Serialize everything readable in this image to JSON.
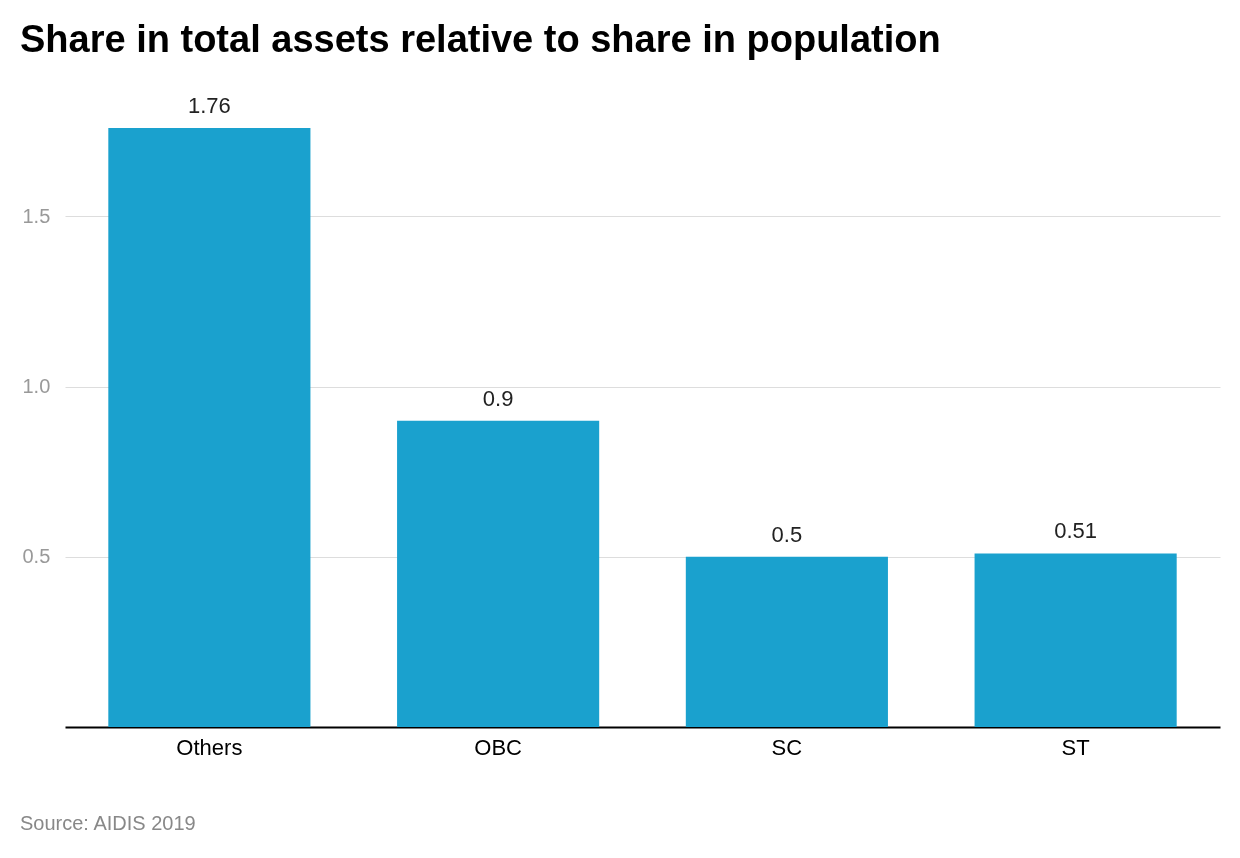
{
  "chart_data": {
    "type": "bar",
    "title": "Share in total assets relative to share in population",
    "categories": [
      "Others",
      "OBC",
      "SC",
      "ST"
    ],
    "values": [
      1.76,
      0.9,
      0.5,
      0.51
    ],
    "color": "#1aa1ce",
    "ylim": [
      0,
      1.76
    ],
    "yticks": [
      0.5,
      {
        "value": 1,
        "label": "1.0"
      },
      1.5
    ],
    "grid": "y",
    "data_labels": true,
    "annotations": [
      "Source: AIDIS 2019"
    ]
  }
}
